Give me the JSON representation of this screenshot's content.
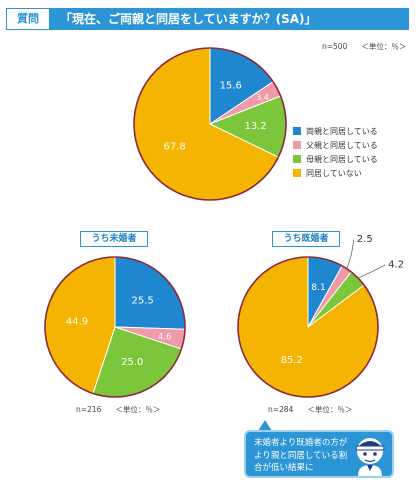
{
  "question": {
    "tag": "質問",
    "text": "「現在、ご両親と同居をしていますか？(SA)」"
  },
  "colors": {
    "header": "#2b95d6",
    "both": "#1f86d0",
    "father": "#ef9aa8",
    "mother": "#7cc63b",
    "none": "#f5b400",
    "outline": "#8a2a3a"
  },
  "chart_data": [
    {
      "type": "pie",
      "id": "total",
      "n_label": "n=500",
      "unit_label": "＜単位：％＞",
      "categories": [
        "両親と同居している",
        "父親と同居している",
        "母親と同居している",
        "同居していない"
      ],
      "values": [
        15.6,
        3.4,
        13.2,
        67.8
      ],
      "value_labels": [
        "15.6",
        "3.4",
        "13.2",
        "67.8"
      ],
      "legend": [
        {
          "label": "両親と同居している"
        },
        {
          "label": "父親と同居している"
        },
        {
          "label": "母親と同居している"
        },
        {
          "label": "同居していない"
        }
      ]
    },
    {
      "type": "pie",
      "id": "unmarried",
      "title": "うち未婚者",
      "n_label": "n=216",
      "unit_label": "＜単位：％＞",
      "categories": [
        "両親と同居している",
        "父親と同居している",
        "母親と同居している",
        "同居していない"
      ],
      "values": [
        25.5,
        4.6,
        25.0,
        44.9
      ],
      "value_labels": [
        "25.5",
        "4.6",
        "25.0",
        "44.9"
      ]
    },
    {
      "type": "pie",
      "id": "married",
      "title": "うち既婚者",
      "n_label": "n=284",
      "unit_label": "＜単位：％＞",
      "categories": [
        "両親と同居している",
        "父親と同居している",
        "母親と同居している",
        "同居していない"
      ],
      "values": [
        8.1,
        2.5,
        4.2,
        85.2
      ],
      "value_labels": [
        "8.1",
        "2.5",
        "4.2",
        "85.2"
      ]
    }
  ],
  "callout": {
    "text": "未婚者より既婚者の方がより親と同居している割合が低い結果に"
  }
}
